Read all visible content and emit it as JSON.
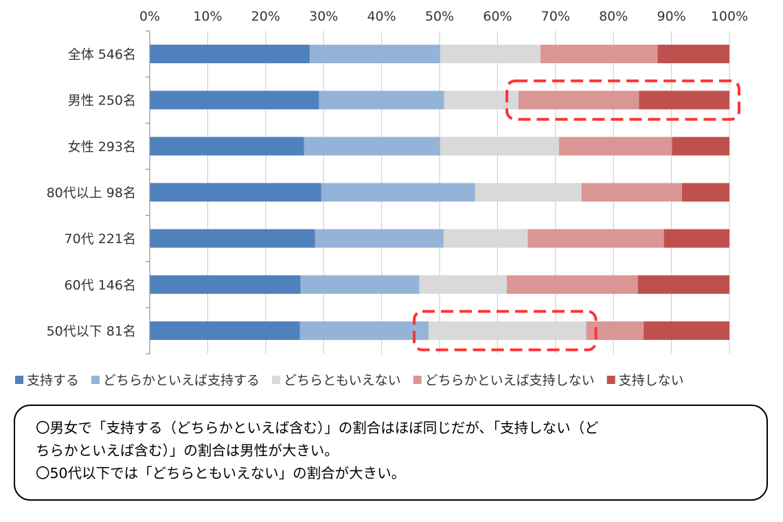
{
  "chart_data": {
    "type": "stacked_bar_horizontal_100",
    "x_ticks": [
      "0%",
      "10%",
      "20%",
      "30%",
      "40%",
      "50%",
      "60%",
      "70%",
      "80%",
      "90%",
      "100%"
    ],
    "xlim": [
      0,
      100
    ],
    "series": [
      {
        "name": "支持する",
        "color": "#4f81bd"
      },
      {
        "name": "どちらかといえば支持する",
        "color": "#95b3d7"
      },
      {
        "name": "どちらともいえない",
        "color": "#d9d9d9"
      },
      {
        "name": "どちらかといえば支持しない",
        "color": "#da9694"
      },
      {
        "name": "支持しない",
        "color": "#c0504d"
      }
    ],
    "categories": [
      "全体 546名",
      "男性 250名",
      "女性 293名",
      "80代以上 98名",
      "70代 221名",
      "60代 146名",
      "50代以下 81名"
    ],
    "values": [
      [
        27.6,
        22.5,
        17.3,
        20.2,
        12.4
      ],
      [
        29.2,
        21.6,
        12.8,
        20.8,
        15.6
      ],
      [
        26.6,
        23.5,
        20.5,
        19.5,
        9.9
      ],
      [
        29.6,
        26.5,
        18.4,
        17.3,
        8.2
      ],
      [
        28.5,
        22.2,
        14.5,
        23.5,
        11.3
      ],
      [
        26.0,
        20.5,
        15.1,
        22.6,
        15.8
      ],
      [
        25.9,
        22.2,
        27.2,
        9.9,
        14.8
      ]
    ],
    "highlights": [
      {
        "category": "男性 250名",
        "from": 62.8,
        "to": 100
      },
      {
        "category": "50代以下 81名",
        "from": 46.8,
        "to": 75.3
      }
    ],
    "grid": true,
    "legend_position": "bottom"
  },
  "notes": {
    "line1": "〇男女で「支持する（どちらかといえば含む）」の割合はほぼ同じだが、「支持しない（ど",
    "line2": "ちらかといえば含む）」の割合は男性が大きい。",
    "line3": "〇50代以下では「どちらともいえない」の割合が大きい。"
  }
}
